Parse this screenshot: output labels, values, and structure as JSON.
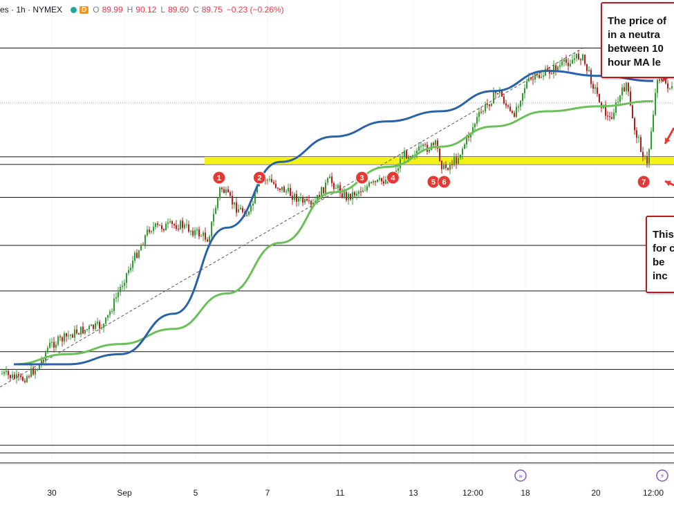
{
  "header": {
    "symbol": "es · 1h · NYMEX",
    "badge": "D",
    "ohlc": [
      {
        "key": "O",
        "value": "89.99"
      },
      {
        "key": "H",
        "value": "90.12"
      },
      {
        "key": "L",
        "value": "89.60"
      },
      {
        "key": "C",
        "value": "89.75"
      },
      {
        "key": "",
        "value": "−0.23 (−0.26%)"
      }
    ]
  },
  "annotations": {
    "note_top": [
      "The price of",
      "in a neutra",
      "between 10",
      "hour MA le"
    ],
    "note_right": [
      "This",
      "for c",
      "be",
      "inc"
    ]
  },
  "colors": {
    "ma_blue": "#2962a8",
    "ma_green": "#6cc05a",
    "highlight": "#f2f21a",
    "marker": "#e53935",
    "arrow": "#e53935",
    "candle_up": "#2e9c2e",
    "candle_down": "#b71c1c",
    "trendline": "#555555"
  },
  "chart_data": {
    "type": "line",
    "x_tick_labels": [
      "30",
      "Sep",
      "5",
      "7",
      "11",
      "13",
      "12:00",
      "18",
      "20",
      "12:00"
    ],
    "series": [
      {
        "values": [
          0.72,
          0.72,
          0.7,
          0.62,
          0.45,
          0.32,
          0.27,
          0.24,
          0.22,
          0.18,
          0.14,
          0.15,
          0.16
        ]
      },
      {
        "values": [
          0.72,
          0.7,
          0.68,
          0.65,
          0.58,
          0.48,
          0.38,
          0.33,
          0.29,
          0.25,
          0.22,
          0.21,
          0.2
        ]
      }
    ],
    "horizontal_levels": [
      0.095,
      0.31,
      0.325,
      0.39,
      0.485,
      0.575,
      0.695,
      0.73,
      0.805,
      0.88,
      0.895,
      0.915
    ],
    "highlight_zone": [
      0.31,
      0.325
    ],
    "markers": [
      {
        "label": "1",
        "x": 0.325
      },
      {
        "label": "2",
        "x": 0.385
      },
      {
        "label": "3",
        "x": 0.537
      },
      {
        "label": "4",
        "x": 0.583
      },
      {
        "label": "5",
        "x": 0.643
      },
      {
        "label": "6",
        "x": 0.659
      },
      {
        "label": "7",
        "x": 0.955
      }
    ]
  }
}
